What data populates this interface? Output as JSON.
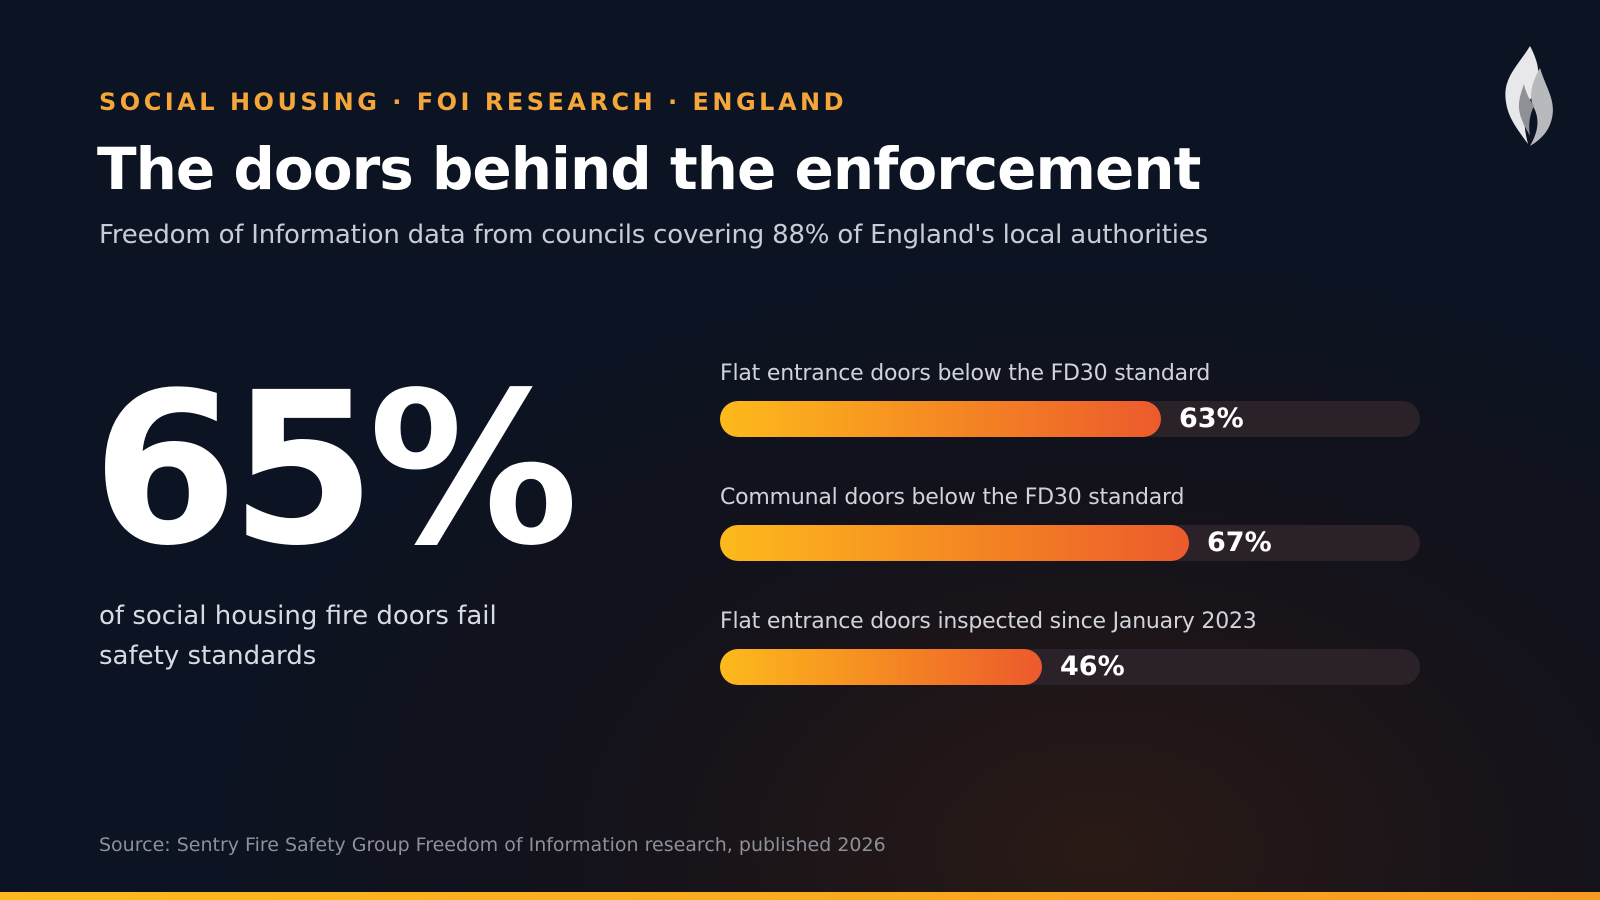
{
  "header": {
    "eyebrow": "SOCIAL HOUSING · FOI RESEARCH · ENGLAND",
    "title": "The doors behind the enforcement",
    "subtitle": "Freedom of Information data from councils covering 88% of England's local authorities"
  },
  "headline_stat": {
    "value": "65%",
    "caption": "of social housing fire doors fail safety standards"
  },
  "logo": {
    "icon": "flame-icon"
  },
  "source": "Source: Sentry Fire Safety Group Freedom of Information research, published 2026",
  "colors": {
    "accent": "#f4a63a",
    "bar_start": "#fdba1c",
    "bar_end": "#ec5a2c",
    "background": "#0c1322"
  },
  "chart_data": {
    "type": "bar",
    "orientation": "horizontal",
    "categories": [
      "Flat entrance doors below the FD30 standard",
      "Communal doors below the FD30 standard",
      "Flat entrance doors inspected since January 2023"
    ],
    "values": [
      63,
      67,
      46
    ],
    "value_labels": [
      "63%",
      "67%",
      "46%"
    ],
    "xlim": [
      0,
      100
    ],
    "grid": false
  }
}
